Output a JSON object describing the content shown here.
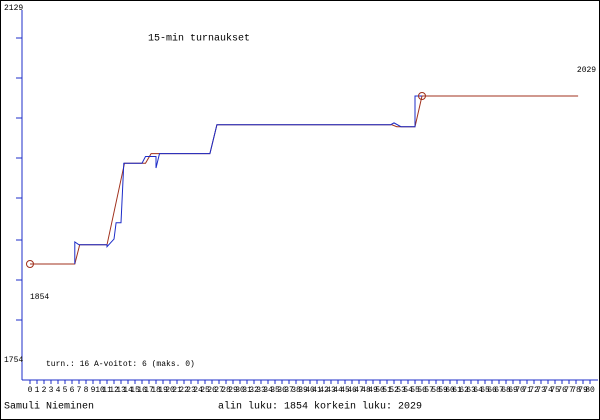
{
  "chart_data": {
    "type": "line",
    "title": "15-min turnaukset",
    "xlim": [
      -1,
      81
    ],
    "ylim": [
      1754,
      2129
    ],
    "xticks": [
      0,
      1,
      2,
      3,
      4,
      5,
      6,
      7,
      8,
      9,
      10,
      11,
      12,
      13,
      14,
      15,
      16,
      17,
      18,
      19,
      20,
      21,
      22,
      23,
      24,
      25,
      26,
      27,
      28,
      29,
      30,
      31,
      32,
      33,
      34,
      35,
      36,
      37,
      38,
      39,
      40,
      41,
      42,
      43,
      44,
      45,
      46,
      47,
      48,
      49,
      50,
      51,
      52,
      53,
      54,
      55,
      56,
      57,
      58,
      59,
      60,
      61,
      62,
      63,
      64,
      65,
      66,
      67,
      68,
      69,
      70,
      71,
      72,
      73,
      74,
      75,
      76,
      77,
      78,
      79,
      80
    ],
    "yticks": [
      1754,
      2129
    ],
    "series": [
      {
        "color": "#a0301c",
        "x": [
          0,
          6.4,
          7.1,
          11,
          13.5,
          16.5,
          17.3,
          25.7,
          26.7,
          51.7,
          52.4,
          55,
          56,
          78.3
        ],
        "values": [
          1854,
          1854,
          1874,
          1874,
          1959,
          1959,
          1969,
          1969,
          1999,
          1999,
          1997,
          1997,
          2029,
          2029
        ]
      },
      {
        "color": "#1c2cc8",
        "x": [
          6.4,
          6.4,
          7,
          11,
          11,
          12,
          12.3,
          13,
          13.4,
          16,
          16.5,
          18,
          18,
          18.5,
          25.7,
          26.7,
          51.5,
          52,
          53,
          55,
          55,
          56
        ],
        "values": [
          1854,
          1877,
          1874,
          1874,
          1872,
          1880,
          1897,
          1897,
          1959,
          1959,
          1966,
          1966,
          1954,
          1969,
          1969,
          1999,
          1999,
          2001,
          1997,
          1997,
          2029,
          2029
        ]
      }
    ],
    "start_label": "1854",
    "end_label": "2029",
    "stats": "turn.: 16  A-voitot: 6  (maks. 0)",
    "author": "Samuli Nieminen",
    "summary": "alin luku: 1854  korkein luku: 2029"
  }
}
